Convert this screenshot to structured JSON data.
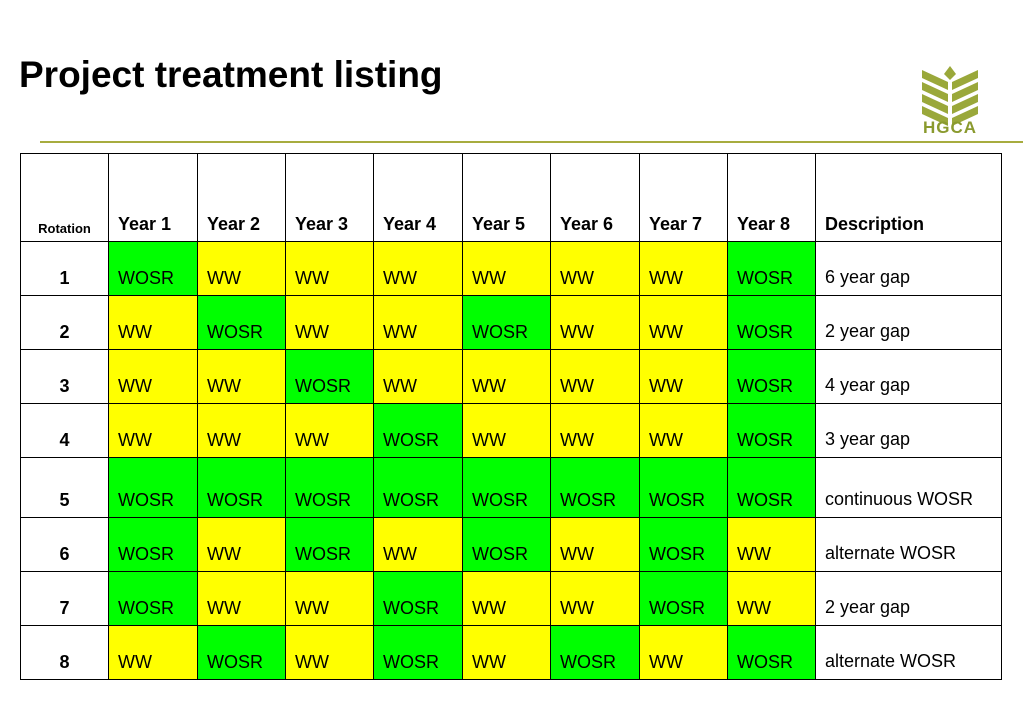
{
  "title": "Project treatment listing",
  "logo": {
    "text": "HGCA",
    "icon": "wheat-book-icon"
  },
  "colors": {
    "WOSR": "#00ff00",
    "WW": "#ffff00",
    "rule": "#a7ac3f",
    "logo": "#8a9a2e"
  },
  "table": {
    "headers": [
      "Rotation",
      "Year 1",
      "Year 2",
      "Year 3",
      "Year 4",
      "Year 5",
      "Year 6",
      "Year 7",
      "Year 8",
      "Description"
    ],
    "rows": [
      {
        "rotation": "1",
        "years": [
          "WOSR",
          "WW",
          "WW",
          "WW",
          "WW",
          "WW",
          "WW",
          "WOSR"
        ],
        "description": "6 year gap"
      },
      {
        "rotation": "2",
        "years": [
          "WW",
          "WOSR",
          "WW",
          "WW",
          "WOSR",
          "WW",
          "WW",
          "WOSR"
        ],
        "description": "2 year gap"
      },
      {
        "rotation": "3",
        "years": [
          "WW",
          "WW",
          "WOSR",
          "WW",
          "WW",
          "WW",
          "WW",
          "WOSR"
        ],
        "description": "4 year gap"
      },
      {
        "rotation": "4",
        "years": [
          "WW",
          "WW",
          "WW",
          "WOSR",
          "WW",
          "WW",
          "WW",
          "WOSR"
        ],
        "description": "3 year gap"
      },
      {
        "rotation": "5",
        "years": [
          "WOSR",
          "WOSR",
          "WOSR",
          "WOSR",
          "WOSR",
          "WOSR",
          "WOSR",
          "WOSR"
        ],
        "description": "continuous WOSR"
      },
      {
        "rotation": "6",
        "years": [
          "WOSR",
          "WW",
          "WOSR",
          "WW",
          "WOSR",
          "WW",
          "WOSR",
          "WW"
        ],
        "description": "alternate WOSR"
      },
      {
        "rotation": "7",
        "years": [
          "WOSR",
          "WW",
          "WW",
          "WOSR",
          "WW",
          "WW",
          "WOSR",
          "WW"
        ],
        "description": "2 year gap"
      },
      {
        "rotation": "8",
        "years": [
          "WW",
          "WOSR",
          "WW",
          "WOSR",
          "WW",
          "WOSR",
          "WW",
          "WOSR"
        ],
        "description": "alternate WOSR"
      }
    ]
  }
}
